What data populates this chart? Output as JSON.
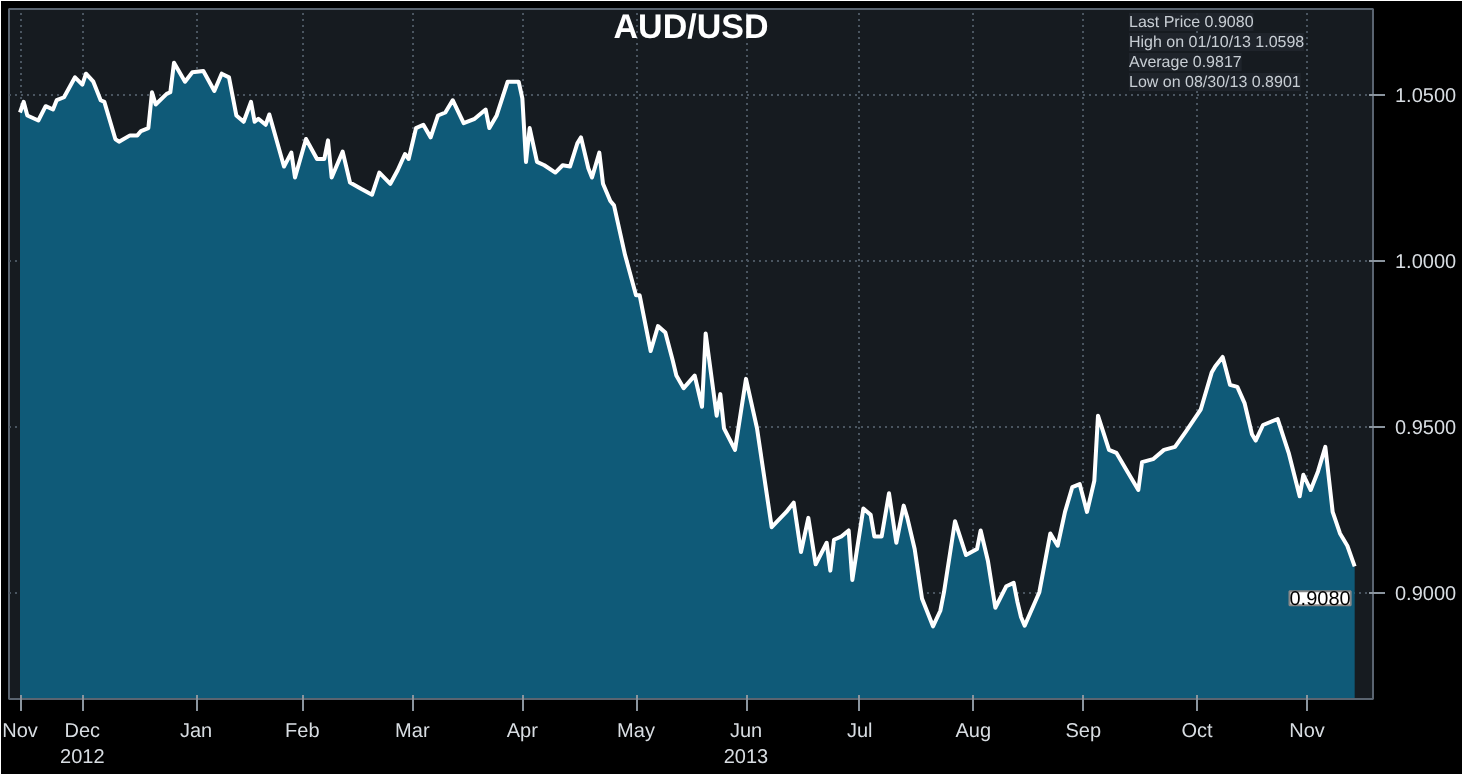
{
  "chart_data": {
    "type": "area",
    "title": "AUD/USD",
    "x": [
      "2012-11-29",
      "2012-11-30",
      "2012-12-01",
      "2012-12-04",
      "2012-12-06",
      "2012-12-08",
      "2012-12-09",
      "2012-12-11",
      "2012-12-14",
      "2012-12-16",
      "2012-12-17",
      "2012-12-19",
      "2012-12-21",
      "2012-12-22",
      "2012-12-25",
      "2012-12-26",
      "2012-12-29",
      "2012-12-31",
      "2013-01-01",
      "2013-01-03",
      "2013-01-04",
      "2013-01-05",
      "2013-01-08",
      "2013-01-09",
      "2013-01-10",
      "2013-01-13",
      "2013-01-15",
      "2013-01-18",
      "2013-01-21",
      "2013-01-23",
      "2013-01-25",
      "2013-01-27",
      "2013-01-29",
      "2013-01-31",
      "2013-02-01",
      "2013-02-02",
      "2013-02-04",
      "2013-02-05",
      "2013-02-09",
      "2013-02-11",
      "2013-02-12",
      "2013-02-15",
      "2013-02-18",
      "2013-02-20",
      "2013-02-21",
      "2013-02-22",
      "2013-02-25",
      "2013-02-27",
      "2013-03-02",
      "2013-03-05",
      "2013-03-07",
      "2013-03-10",
      "2013-03-12",
      "2013-03-14",
      "2013-03-15",
      "2013-03-17",
      "2013-03-19",
      "2013-03-21",
      "2013-03-23",
      "2013-03-25",
      "2013-03-27",
      "2013-03-30",
      "2013-04-02",
      "2013-04-05",
      "2013-04-06",
      "2013-04-08",
      "2013-04-11",
      "2013-04-14",
      "2013-04-15",
      "2013-04-16",
      "2013-04-17",
      "2013-04-19",
      "2013-04-21",
      "2013-04-24",
      "2013-04-26",
      "2013-04-28",
      "2013-04-30",
      "2013-05-01",
      "2013-05-03",
      "2013-05-04",
      "2013-05-06",
      "2013-05-07",
      "2013-05-09",
      "2013-05-10",
      "2013-05-13",
      "2013-05-16",
      "2013-05-17",
      "2013-05-20",
      "2013-05-22",
      "2013-05-24",
      "2013-05-26",
      "2013-05-27",
      "2013-05-29",
      "2013-06-01",
      "2013-06-03",
      "2013-06-04",
      "2013-06-07",
      "2013-06-08",
      "2013-06-09",
      "2013-06-12",
      "2013-06-15",
      "2013-06-18",
      "2013-06-22",
      "2013-06-26",
      "2013-06-28",
      "2013-06-30",
      "2013-07-02",
      "2013-07-04",
      "2013-07-07",
      "2013-07-08",
      "2013-07-09",
      "2013-07-11",
      "2013-07-13",
      "2013-07-14",
      "2013-07-17",
      "2013-07-19",
      "2013-07-20",
      "2013-07-22",
      "2013-07-24",
      "2013-07-26",
      "2013-07-28",
      "2013-07-29",
      "2013-07-31",
      "2013-08-02",
      "2013-08-05",
      "2013-08-07",
      "2013-08-08",
      "2013-08-11",
      "2013-08-14",
      "2013-08-17",
      "2013-08-18",
      "2013-08-20",
      "2013-08-22",
      "2013-08-25",
      "2013-08-27",
      "2013-08-28",
      "2013-08-29",
      "2013-08-30",
      "2013-09-03",
      "2013-09-06",
      "2013-09-08",
      "2013-09-10",
      "2013-09-12",
      "2013-09-14",
      "2013-09-16",
      "2013-09-18",
      "2013-09-19",
      "2013-09-22",
      "2013-09-24",
      "2013-09-27",
      "2013-09-30",
      "2013-10-01",
      "2013-10-04",
      "2013-10-07",
      "2013-10-10",
      "2013-10-13",
      "2013-10-17",
      "2013-10-20",
      "2013-10-21",
      "2013-10-23",
      "2013-10-25",
      "2013-10-27",
      "2013-10-29",
      "2013-10-31",
      "2013-11-01",
      "2013-11-03",
      "2013-11-05",
      "2013-11-07",
      "2013-11-10",
      "2013-11-13",
      "2013-11-14",
      "2013-11-16",
      "2013-11-18",
      "2013-11-20",
      "2013-11-22",
      "2013-11-24",
      "2013-11-26",
      "2013-11-28"
    ],
    "series": [
      {
        "color": "#0f5a78",
        "values": [
          1.0448,
          1.048,
          1.0439,
          1.0424,
          1.0467,
          1.0457,
          1.0485,
          1.0494,
          1.0554,
          1.0532,
          1.0565,
          1.0541,
          1.0485,
          1.048,
          1.0368,
          1.036,
          1.0379,
          1.0379,
          1.0392,
          1.0401,
          1.0509,
          1.0472,
          1.0504,
          1.0509,
          1.0598,
          1.0541,
          1.0569,
          1.0573,
          1.0513,
          1.0565,
          1.0554,
          1.0439,
          1.042,
          1.048,
          1.042,
          1.0429,
          1.0411,
          1.0442,
          1.0285,
          1.0327,
          1.0252,
          1.0368,
          1.0308,
          1.0308,
          1.0364,
          1.0252,
          1.033,
          1.0237,
          1.0218,
          1.02,
          1.0267,
          1.0233,
          1.0274,
          1.0323,
          1.0308,
          1.0401,
          1.0411,
          1.0373,
          1.0439,
          1.0448,
          1.0485,
          1.0416,
          1.0429,
          1.0457,
          1.0401,
          1.0439,
          1.0541,
          1.0541,
          1.0491,
          1.0299,
          1.0401,
          1.0299,
          1.0289,
          1.0267,
          1.0289,
          1.0285,
          1.0355,
          1.0373,
          1.028,
          1.0252,
          1.0327,
          1.0233,
          1.0181,
          1.0168,
          1.0019,
          0.9897,
          0.9897,
          0.9729,
          0.9804,
          0.9785,
          0.9701,
          0.9655,
          0.9617,
          0.9655,
          0.9561,
          0.9782,
          0.9534,
          0.9599,
          0.9496,
          0.9431,
          0.9645,
          0.9496,
          0.9198,
          0.9244,
          0.9272,
          0.9123,
          0.9226,
          0.9086,
          0.9151,
          0.9067,
          0.916,
          0.917,
          0.9188,
          0.9039,
          0.9254,
          0.9235,
          0.917,
          0.917,
          0.93,
          0.9151,
          0.9263,
          0.9226,
          0.9132,
          0.8983,
          0.8899,
          0.8946,
          0.9002,
          0.9216,
          0.9114,
          0.9132,
          0.9188,
          0.9095,
          0.8955,
          0.902,
          0.903,
          0.8974,
          0.8927,
          0.8901,
          0.9002,
          0.9179,
          0.9142,
          0.9244,
          0.9319,
          0.9328,
          0.9244,
          0.9338,
          0.9534,
          0.9431,
          0.9422,
          0.9366,
          0.931,
          0.9394,
          0.9403,
          0.9431,
          0.944,
          0.9487,
          0.9552,
          0.9664,
          0.9683,
          0.9711,
          0.9627,
          0.9621,
          0.9571,
          0.9478,
          0.9459,
          0.9506,
          0.9515,
          0.9524,
          0.9422,
          0.9291,
          0.9356,
          0.931,
          0.9366,
          0.944,
          0.9244,
          0.9179,
          0.9142,
          0.908
        ]
      }
    ],
    "xlim": [
      "2012-11-26",
      "2013-12-03"
    ],
    "xticks": [
      {
        "value": "2012-11-29",
        "label": "Nov"
      },
      {
        "value": "2012-12-16",
        "label": "Dec\n2012"
      },
      {
        "value": "2013-01-16",
        "label": "Jan"
      },
      {
        "value": "2013-02-14",
        "label": "Feb"
      },
      {
        "value": "2013-03-16",
        "label": "Mar"
      },
      {
        "value": "2013-04-15",
        "label": "Apr"
      },
      {
        "value": "2013-05-16",
        "label": "May"
      },
      {
        "value": "2013-06-15",
        "label": "Jun\n2013"
      },
      {
        "value": "2013-07-16",
        "label": "Jul"
      },
      {
        "value": "2013-08-16",
        "label": "Aug"
      },
      {
        "value": "2013-09-15",
        "label": "Sep"
      },
      {
        "value": "2013-10-16",
        "label": "Oct"
      },
      {
        "value": "2013-11-15",
        "label": "Nov"
      }
    ],
    "ylim": [
      0.868,
      1.076
    ],
    "yticks": [
      {
        "value": 0.9,
        "label": "0.9000"
      },
      {
        "value": 0.95,
        "label": "0.9500"
      },
      {
        "value": 1.0,
        "label": "1.0000"
      },
      {
        "value": 1.05,
        "label": "1.0500"
      }
    ],
    "grid": true,
    "annotations": [
      "Last Price 0.9080",
      "High on 01/10/13 1.0598",
      "Average 0.9817",
      "Low on 08/30/13 0.8901",
      {
        "text": "0.9080",
        "x": "2013-11-28",
        "y": 0.908
      }
    ]
  }
}
